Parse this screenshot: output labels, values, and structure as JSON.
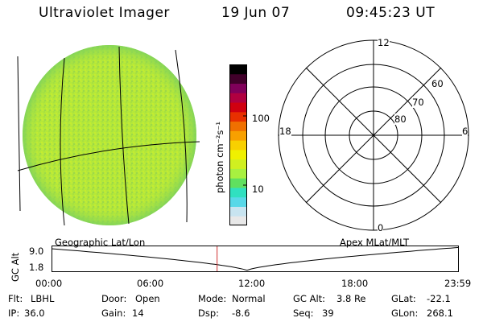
{
  "header": {
    "title": "Ultraviolet Imager",
    "date": "19 Jun 07",
    "time": "09:45:23 UT"
  },
  "image_panel": {
    "label": "Geographic Lat/Lon"
  },
  "colorbar": {
    "unit_label": "photon cm⁻²s⁻¹",
    "ticks": [
      {
        "label": "100",
        "value": 100
      },
      {
        "label": "10",
        "value": 10
      }
    ],
    "colors": [
      "#e8e8e8",
      "#c8e4f0",
      "#58d8e8",
      "#30e0c0",
      "#60e060",
      "#a8f040",
      "#d0f020",
      "#f0f000",
      "#f8d000",
      "#f8a000",
      "#f07000",
      "#e83000",
      "#d00010",
      "#b00040",
      "#80005a",
      "#40002a",
      "#000000"
    ]
  },
  "polar_panel": {
    "label": "Apex MLat/MLT",
    "mlt_labels": {
      "top": "12",
      "left": "18",
      "right": "6",
      "bottom": "0"
    },
    "lat_labels": [
      "60",
      "70",
      "80"
    ]
  },
  "altitude_plot": {
    "ylabel": "GC Alt",
    "yticks": [
      "9.0",
      "1.8"
    ],
    "xticks": [
      "00:00",
      "06:00",
      "12:00",
      "18:00",
      "23:59"
    ],
    "current_time_hours": 9.756
  },
  "info": {
    "row1": [
      {
        "key": "Flt:",
        "value": "LBHL"
      },
      {
        "key": "Door:",
        "value": "Open"
      },
      {
        "key": "Mode:",
        "value": "Normal"
      },
      {
        "key": "GC Alt:",
        "value": "3.8 Re"
      },
      {
        "key": "GLat:",
        "value": "-22.1"
      }
    ],
    "row2": [
      {
        "key": "IP:",
        "value": "36.0"
      },
      {
        "key": "Gain:",
        "value": "14"
      },
      {
        "key": "Dsp:",
        "value": "-8.6"
      },
      {
        "key": "Seq:",
        "value": "39"
      },
      {
        "key": "GLon:",
        "value": "268.1"
      }
    ]
  }
}
